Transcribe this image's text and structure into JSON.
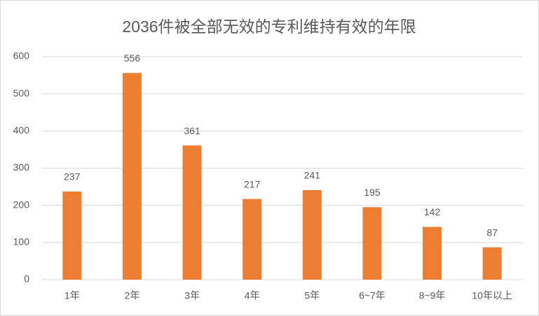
{
  "chart_data": {
    "type": "bar",
    "title": "2036件被全部无效的专利维持有效的年限",
    "categories": [
      "1年",
      "2年",
      "3年",
      "4年",
      "5年",
      "6~7年",
      "8~9年",
      "10年以上"
    ],
    "values": [
      237,
      556,
      361,
      217,
      241,
      195,
      142,
      87
    ],
    "color": "#ed7d31",
    "ylim": [
      0,
      600
    ],
    "yticks": [
      0,
      100,
      200,
      300,
      400,
      500,
      600
    ],
    "grid": true
  }
}
